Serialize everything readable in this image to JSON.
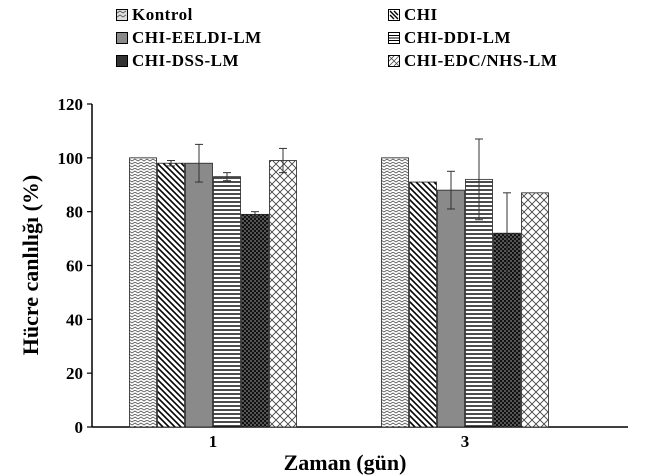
{
  "chart_data": {
    "type": "bar",
    "categories": [
      "1",
      "3"
    ],
    "series": [
      {
        "name": "Kontrol",
        "values": [
          100,
          100
        ],
        "errors": [
          0,
          0
        ]
      },
      {
        "name": "CHI",
        "values": [
          98,
          91
        ],
        "errors": [
          1,
          0
        ]
      },
      {
        "name": "CHI-EELDI-LM",
        "values": [
          98,
          88
        ],
        "errors": [
          7,
          7
        ]
      },
      {
        "name": "CHI-DDI-LM",
        "values": [
          93,
          92
        ],
        "errors": [
          1.5,
          15
        ]
      },
      {
        "name": "CHI-DSS-LM",
        "values": [
          79,
          72
        ],
        "errors": [
          1,
          15
        ]
      },
      {
        "name": "CHI-EDC/NHS-LM",
        "values": [
          99,
          87
        ],
        "errors": [
          4.5,
          0
        ]
      }
    ],
    "xlabel": "Zaman (gün)",
    "ylabel": "Hücre canlılığı (%)",
    "ylim": [
      0,
      120
    ],
    "yticks": [
      "0",
      "20",
      "40",
      "60",
      "80",
      "100",
      "120"
    ],
    "grid": false,
    "legend_position": "top"
  }
}
